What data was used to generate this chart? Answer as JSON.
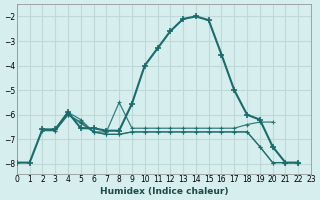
{
  "xlabel": "Humidex (Indice chaleur)",
  "ylabel": "",
  "background_color": "#d6eeee",
  "grid_color": "#c0d8d8",
  "line_color": "#1a6b6b",
  "xlim": [
    0,
    23
  ],
  "ylim": [
    -8.4,
    -1.5
  ],
  "yticks": [
    -8,
    -7,
    -6,
    -5,
    -4,
    -3,
    -2
  ],
  "xticks": [
    0,
    1,
    2,
    3,
    4,
    5,
    6,
    7,
    8,
    9,
    10,
    11,
    12,
    13,
    14,
    15,
    16,
    17,
    18,
    19,
    20,
    21,
    22,
    23
  ],
  "series": [
    [
      [
        -0.5,
        -7.75
      ],
      [
        0,
        -7.95
      ],
      [
        1,
        -7.95
      ],
      [
        2,
        -6.6
      ],
      [
        3,
        -6.6
      ],
      [
        4,
        -5.9
      ],
      [
        5,
        -6.55
      ],
      [
        6,
        -6.55
      ],
      [
        7,
        -6.65
      ],
      [
        8,
        -6.65
      ],
      [
        9,
        -5.55
      ],
      [
        10,
        -4.0
      ],
      [
        11,
        -3.3
      ],
      [
        12,
        -2.6
      ],
      [
        13,
        -2.1
      ],
      [
        14,
        -2.0
      ],
      [
        15,
        -2.15
      ],
      [
        16,
        -3.55
      ],
      [
        17,
        -5.0
      ],
      [
        18,
        -6.0
      ],
      [
        19,
        -6.2
      ],
      [
        20,
        -7.3
      ],
      [
        21,
        -7.95
      ],
      [
        22,
        -7.95
      ]
    ],
    [
      [
        2,
        -6.6
      ],
      [
        3,
        -6.6
      ],
      [
        4,
        -5.9
      ],
      [
        5,
        -6.2
      ],
      [
        6,
        -6.7
      ],
      [
        7,
        -6.7
      ],
      [
        8,
        -5.5
      ],
      [
        9,
        -6.55
      ],
      [
        10,
        -6.55
      ],
      [
        11,
        -6.55
      ],
      [
        12,
        -6.55
      ],
      [
        13,
        -6.55
      ],
      [
        14,
        -6.55
      ],
      [
        15,
        -6.55
      ],
      [
        16,
        -6.55
      ],
      [
        17,
        -6.55
      ],
      [
        18,
        -6.4
      ],
      [
        19,
        -6.3
      ],
      [
        20,
        -6.3
      ]
    ],
    [
      [
        2,
        -6.65
      ],
      [
        3,
        -6.65
      ],
      [
        4,
        -6.0
      ],
      [
        5,
        -6.35
      ],
      [
        6,
        -6.7
      ],
      [
        7,
        -6.8
      ],
      [
        8,
        -6.8
      ],
      [
        9,
        -6.7
      ],
      [
        10,
        -6.7
      ],
      [
        11,
        -6.7
      ],
      [
        12,
        -6.7
      ],
      [
        13,
        -6.7
      ],
      [
        14,
        -6.7
      ],
      [
        15,
        -6.7
      ],
      [
        16,
        -6.7
      ],
      [
        17,
        -6.7
      ],
      [
        18,
        -6.7
      ],
      [
        19,
        -7.3
      ],
      [
        20,
        -7.95
      ],
      [
        21,
        -7.95
      ],
      [
        22,
        -7.95
      ]
    ],
    [
      [
        2,
        -6.6
      ],
      [
        3,
        -6.65
      ],
      [
        4,
        -6.0
      ],
      [
        5,
        -6.3
      ],
      [
        6,
        -6.7
      ],
      [
        7,
        -6.8
      ],
      [
        8,
        -6.8
      ],
      [
        9,
        -6.7
      ],
      [
        10,
        -6.7
      ],
      [
        11,
        -6.7
      ],
      [
        12,
        -6.7
      ],
      [
        13,
        -6.7
      ],
      [
        14,
        -6.7
      ],
      [
        15,
        -6.7
      ],
      [
        16,
        -6.7
      ],
      [
        17,
        -6.7
      ],
      [
        18,
        -6.7
      ],
      [
        19,
        -7.3
      ],
      [
        20,
        -7.95
      ],
      [
        21,
        -7.95
      ],
      [
        22,
        -7.95
      ]
    ]
  ]
}
